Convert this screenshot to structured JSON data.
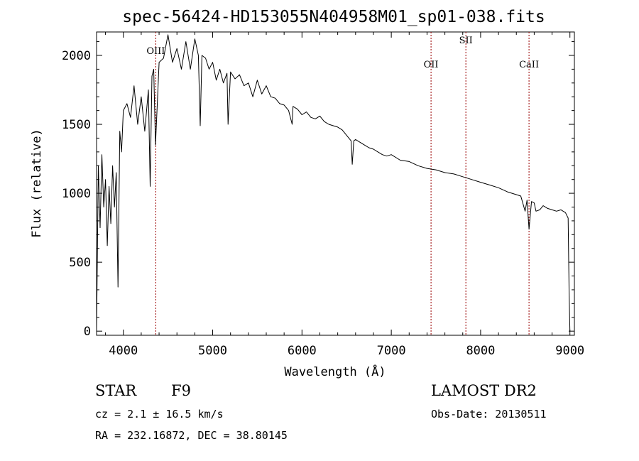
{
  "chart_data": {
    "type": "line",
    "title": "spec-56424-HD153055N404958M01_sp01-038.fits",
    "xlabel": "Wavelength (Å)",
    "ylabel": "Flux (relative)",
    "xlim": [
      3700,
      9050
    ],
    "ylim": [
      -30,
      2170
    ],
    "x_ticks": [
      4000,
      5000,
      6000,
      7000,
      8000,
      9000
    ],
    "y_ticks": [
      0,
      500,
      1000,
      1500,
      2000
    ],
    "grid": false,
    "legend": "none",
    "line_color": "#000000",
    "marker_color": "#990000",
    "series": [
      {
        "x": [
          3700,
          3720,
          3740,
          3760,
          3780,
          3800,
          3820,
          3840,
          3860,
          3880,
          3900,
          3920,
          3940,
          3960,
          3980,
          4000,
          4040,
          4080,
          4120,
          4160,
          4200,
          4240,
          4280,
          4300,
          4320,
          4340,
          4360,
          4400,
          4450,
          4500,
          4550,
          4600,
          4650,
          4700,
          4750,
          4800,
          4840,
          4861,
          4880,
          4920,
          4960,
          5000,
          5040,
          5080,
          5120,
          5160,
          5172,
          5200,
          5250,
          5300,
          5350,
          5400,
          5450,
          5500,
          5550,
          5600,
          5650,
          5700,
          5750,
          5800,
          5850,
          5890,
          5900,
          5950,
          6000,
          6050,
          6100,
          6150,
          6200,
          6250,
          6300,
          6350,
          6400,
          6450,
          6500,
          6550,
          6563,
          6580,
          6600,
          6650,
          6700,
          6750,
          6800,
          6850,
          6900,
          6950,
          7000,
          7100,
          7200,
          7300,
          7400,
          7500,
          7600,
          7700,
          7800,
          7900,
          8000,
          8100,
          8200,
          8300,
          8400,
          8450,
          8498,
          8520,
          8542,
          8570,
          8600,
          8620,
          8662,
          8700,
          8750,
          8800,
          8850,
          8900,
          8950,
          8980,
          8990,
          9000
        ],
        "values": [
          0,
          1200,
          750,
          1280,
          900,
          1100,
          620,
          1050,
          780,
          1200,
          900,
          1150,
          320,
          1450,
          1300,
          1600,
          1650,
          1550,
          1780,
          1500,
          1700,
          1450,
          1750,
          1050,
          1850,
          1900,
          1350,
          1950,
          1980,
          2150,
          1950,
          2050,
          1900,
          2100,
          1900,
          2120,
          2000,
          1490,
          2000,
          1980,
          1900,
          1950,
          1820,
          1900,
          1800,
          1870,
          1500,
          1880,
          1830,
          1860,
          1780,
          1800,
          1700,
          1820,
          1720,
          1780,
          1700,
          1690,
          1650,
          1640,
          1600,
          1500,
          1630,
          1610,
          1570,
          1590,
          1550,
          1540,
          1560,
          1520,
          1500,
          1490,
          1480,
          1460,
          1420,
          1380,
          1210,
          1380,
          1390,
          1370,
          1350,
          1330,
          1320,
          1300,
          1280,
          1270,
          1280,
          1240,
          1230,
          1200,
          1180,
          1170,
          1150,
          1140,
          1120,
          1100,
          1080,
          1060,
          1040,
          1010,
          990,
          980,
          870,
          950,
          740,
          940,
          930,
          870,
          880,
          910,
          890,
          880,
          870,
          880,
          860,
          820,
          300,
          0
        ]
      }
    ],
    "lines": [
      {
        "x": 4363,
        "label": "OIII"
      },
      {
        "x": 7445,
        "label": "OII"
      },
      {
        "x": 7835,
        "label": "SII"
      },
      {
        "x": 8542,
        "label": "CaII"
      }
    ]
  },
  "info": {
    "object_class": "STAR",
    "subclass": "F9",
    "survey": "LAMOST DR2",
    "redshift": "cz = 2.1 ± 16.5 km/s",
    "obs_date": "Obs-Date: 20130511",
    "coords": "RA = 232.16872, DEC =  38.80145"
  }
}
